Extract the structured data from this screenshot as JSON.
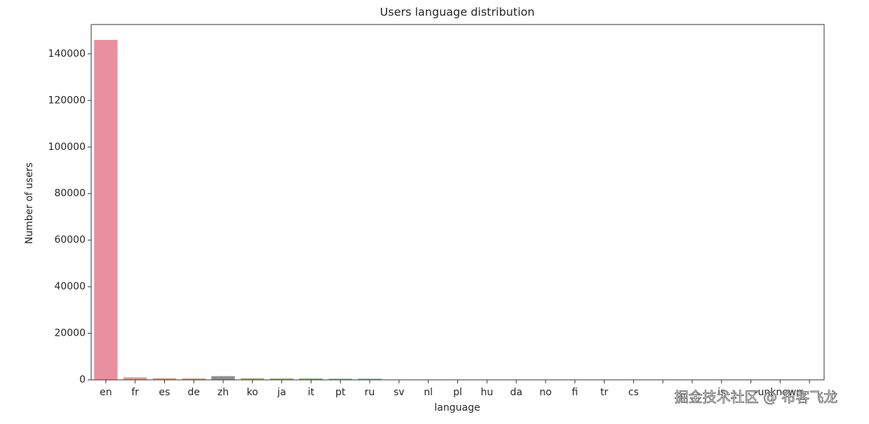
{
  "chart_data": {
    "type": "bar",
    "title": "Users language distribution",
    "x_label": "language",
    "y_label": "Number of users",
    "categories": [
      "en",
      "fr",
      "es",
      "de",
      "zh",
      "ko",
      "ja",
      "it",
      "pt",
      "ru",
      "sv",
      "nl",
      "pl",
      "hu",
      "da",
      "no",
      "fi",
      "tr",
      "cs",
      null,
      null,
      "is",
      null,
      "-unknown-",
      null
    ],
    "values": [
      146000,
      1100,
      700,
      600,
      1600,
      700,
      600,
      600,
      500,
      500,
      120,
      100,
      60,
      50,
      60,
      40,
      40,
      60,
      40,
      30,
      20,
      10,
      30,
      20,
      10
    ],
    "colors": [
      "#e8909f",
      "#e89a8a",
      "#dfa07a",
      "#d2a76d",
      "#8f8f8f",
      "#b1b064",
      "#9cb664",
      "#84ba6f",
      "#6fbd84",
      "#66bb9a",
      "#66baac",
      "#67b8bb",
      "#6ab5c9",
      "#72b0d8",
      "#82a9e5",
      "#96a1ec",
      "#ab98ec",
      "#c191e6",
      "#d48bdc",
      "#e187cd",
      "#e589bd",
      "#e88bad",
      "#e98ea4",
      "#e8909f",
      "#e8909f"
    ],
    "ylim": [
      0,
      152600
    ],
    "yticks": [
      0,
      20000,
      40000,
      60000,
      80000,
      100000,
      120000,
      140000
    ],
    "watermark": "掘金技术社区 @ 布客飞龙"
  }
}
